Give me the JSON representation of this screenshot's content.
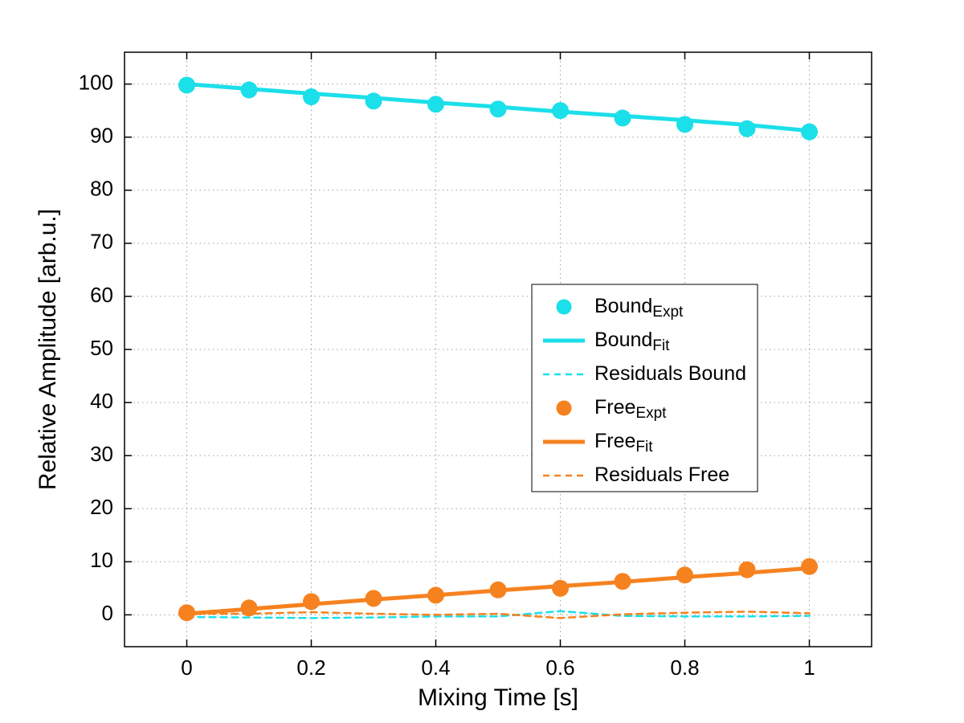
{
  "chart_data": {
    "type": "line",
    "title": "",
    "xlabel": "Mixing Time [s]",
    "ylabel": "Relative Amplitude [arb.u.]",
    "xlim": [
      -0.1,
      1.1
    ],
    "ylim": [
      -6,
      106
    ],
    "xticks": [
      0,
      0.2,
      0.4,
      0.6,
      0.8,
      1
    ],
    "xtick_labels": [
      "0",
      "0.2",
      "0.4",
      "0.6",
      "0.8",
      "1"
    ],
    "yticks": [
      0,
      10,
      20,
      30,
      40,
      50,
      60,
      70,
      80,
      90,
      100
    ],
    "ytick_labels": [
      "0",
      "10",
      "20",
      "30",
      "40",
      "50",
      "60",
      "70",
      "80",
      "90",
      "100"
    ],
    "grid": true,
    "legend_position": "inside-center-right",
    "x": [
      0,
      0.1,
      0.2,
      0.3,
      0.4,
      0.5,
      0.6,
      0.7,
      0.8,
      0.9,
      1.0
    ],
    "series": [
      {
        "id": "bound-expt",
        "label_main": "Bound",
        "label_sub": "Expt",
        "style": "scatter",
        "color": "#1BDFE9",
        "values": [
          99.8,
          98.9,
          97.6,
          96.8,
          96.2,
          95.3,
          95.0,
          93.6,
          92.4,
          91.6,
          91.0
        ]
      },
      {
        "id": "bound-fit",
        "label_main": "Bound",
        "label_sub": "Fit",
        "style": "line",
        "color": "#1BDFE9",
        "values": [
          100.0,
          99.1,
          98.2,
          97.4,
          96.5,
          95.7,
          94.8,
          94.0,
          93.2,
          92.3,
          91.2
        ]
      },
      {
        "id": "residuals-bound",
        "label_main": "Residuals Bound",
        "label_sub": "",
        "style": "dashed",
        "color": "#1BDFE9",
        "values": [
          -0.4,
          -0.5,
          -0.6,
          -0.5,
          -0.3,
          -0.3,
          0.7,
          -0.2,
          -0.3,
          -0.3,
          -0.2
        ]
      },
      {
        "id": "free-expt",
        "label_main": "Free",
        "label_sub": "Expt",
        "style": "scatter",
        "color": "#F5821F",
        "values": [
          0.4,
          1.3,
          2.5,
          3.1,
          3.7,
          4.7,
          5.0,
          6.3,
          7.5,
          8.5,
          9.1
        ]
      },
      {
        "id": "free-fit",
        "label_main": "Free",
        "label_sub": "Fit",
        "style": "line",
        "color": "#F5821F",
        "values": [
          0.2,
          1.1,
          2.0,
          2.9,
          3.7,
          4.6,
          5.4,
          6.2,
          7.1,
          7.9,
          8.8
        ]
      },
      {
        "id": "residuals-free",
        "label_main": "Residuals Free",
        "label_sub": "",
        "style": "dashed",
        "color": "#F5821F",
        "values": [
          0.2,
          0.2,
          0.5,
          0.2,
          0.0,
          0.2,
          -0.6,
          0.1,
          0.4,
          0.6,
          0.3
        ]
      }
    ]
  },
  "colors": {
    "axis": "#000000",
    "grid": "#9e9e9e",
    "background": "#ffffff",
    "legend_border": "#000000"
  }
}
